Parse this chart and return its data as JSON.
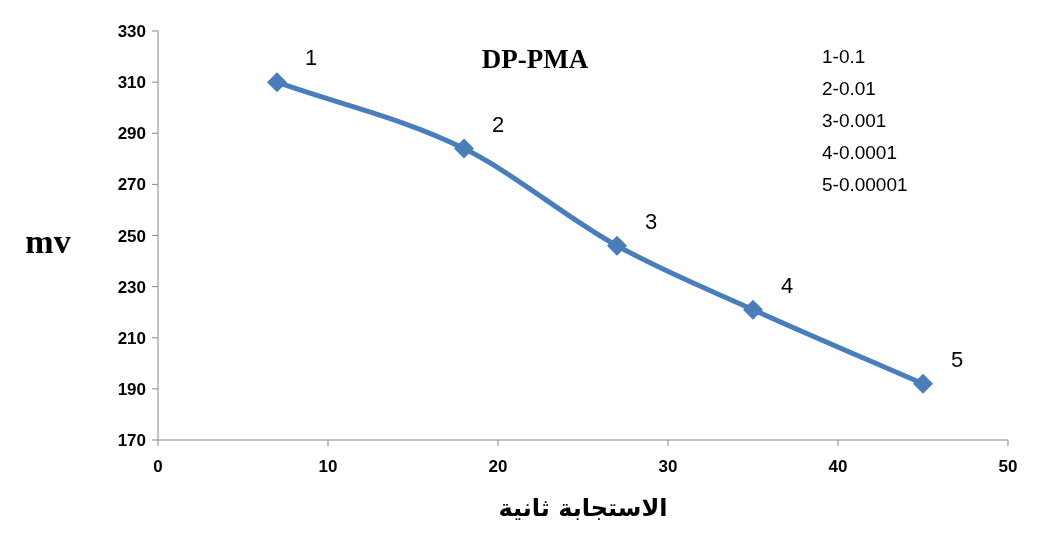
{
  "chart_data": {
    "type": "line",
    "title": "DP-PMA",
    "xlabel": "الاستجابة ثانية",
    "ylabel": "mv",
    "x": [
      7,
      18,
      27,
      35,
      45
    ],
    "series": [
      {
        "color": "#4a7ebb",
        "values": [
          310,
          284,
          246,
          221,
          192
        ]
      }
    ],
    "xlim": [
      0,
      50
    ],
    "xticks": [
      0,
      10,
      20,
      30,
      40,
      50
    ],
    "ylim": [
      170,
      330
    ],
    "yticks": [
      170,
      190,
      210,
      230,
      250,
      270,
      290,
      310,
      330
    ],
    "grid": false,
    "marker": "diamond",
    "line_style": "solid",
    "annotations": [
      {
        "text": "1",
        "x": 7,
        "y": 310
      },
      {
        "text": "2",
        "x": 18,
        "y": 284
      },
      {
        "text": "3",
        "x": 27,
        "y": 246
      },
      {
        "text": "4",
        "x": 35,
        "y": 221
      },
      {
        "text": "5",
        "x": 45,
        "y": 192
      },
      "1-0.1",
      "2-0.01",
      "3-0.001",
      "4-0.0001",
      "5-0.00001"
    ]
  }
}
